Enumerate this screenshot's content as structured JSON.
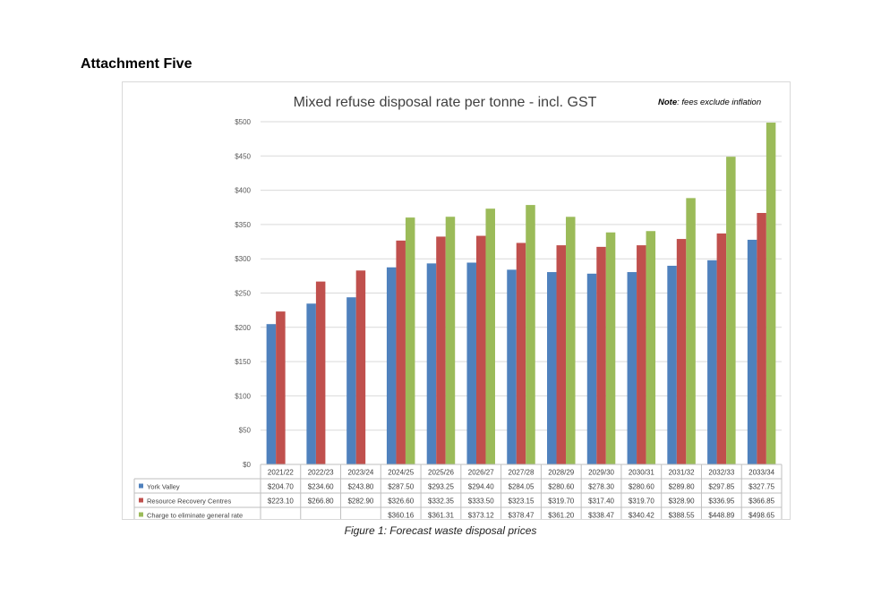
{
  "heading": "Attachment Five",
  "caption": "Figure 1: Forecast waste disposal prices",
  "chart_data": {
    "type": "bar",
    "title": "Mixed refuse disposal rate per tonne - incl. GST",
    "note_label": "Note",
    "note_text": ": fees exclude inflation",
    "ylim": [
      0,
      500
    ],
    "y_ticks": [
      "$0",
      "$50",
      "$100",
      "$150",
      "$200",
      "$250",
      "$300",
      "$350",
      "$400",
      "$450",
      "$500"
    ],
    "grid": true,
    "legend": "table-below",
    "categories": [
      "2021/22",
      "2022/23",
      "2023/24",
      "2024/25",
      "2025/26",
      "2026/27",
      "2027/28",
      "2028/29",
      "2029/30",
      "2030/31",
      "2031/32",
      "2032/33",
      "2033/34"
    ],
    "series": [
      {
        "name": "York Valley",
        "color": "#4f81bd",
        "values": [
          204.7,
          234.6,
          243.8,
          287.5,
          293.25,
          294.4,
          284.05,
          280.6,
          278.3,
          280.6,
          289.8,
          297.85,
          327.75
        ],
        "labels": [
          "$204.70",
          "$234.60",
          "$243.80",
          "$287.50",
          "$293.25",
          "$294.40",
          "$284.05",
          "$280.60",
          "$278.30",
          "$280.60",
          "$289.80",
          "$297.85",
          "$327.75"
        ]
      },
      {
        "name": "Resource Recovery Centres",
        "color": "#c0504d",
        "values": [
          223.1,
          266.8,
          282.9,
          326.6,
          332.35,
          333.5,
          323.15,
          319.7,
          317.4,
          319.7,
          328.9,
          336.95,
          366.85
        ],
        "labels": [
          "$223.10",
          "$266.80",
          "$282.90",
          "$326.60",
          "$332.35",
          "$333.50",
          "$323.15",
          "$319.70",
          "$317.40",
          "$319.70",
          "$328.90",
          "$336.95",
          "$366.85"
        ]
      },
      {
        "name": "Charge to eliminate general rate",
        "color": "#9bbb59",
        "values": [
          null,
          null,
          null,
          360.16,
          361.31,
          373.12,
          378.47,
          361.2,
          338.47,
          340.42,
          388.55,
          448.89,
          498.65
        ],
        "labels": [
          "",
          "",
          "",
          "$360.16",
          "$361.31",
          "$373.12",
          "$378.47",
          "$361.20",
          "$338.47",
          "$340.42",
          "$388.55",
          "$448.89",
          "$498.65"
        ]
      }
    ]
  }
}
